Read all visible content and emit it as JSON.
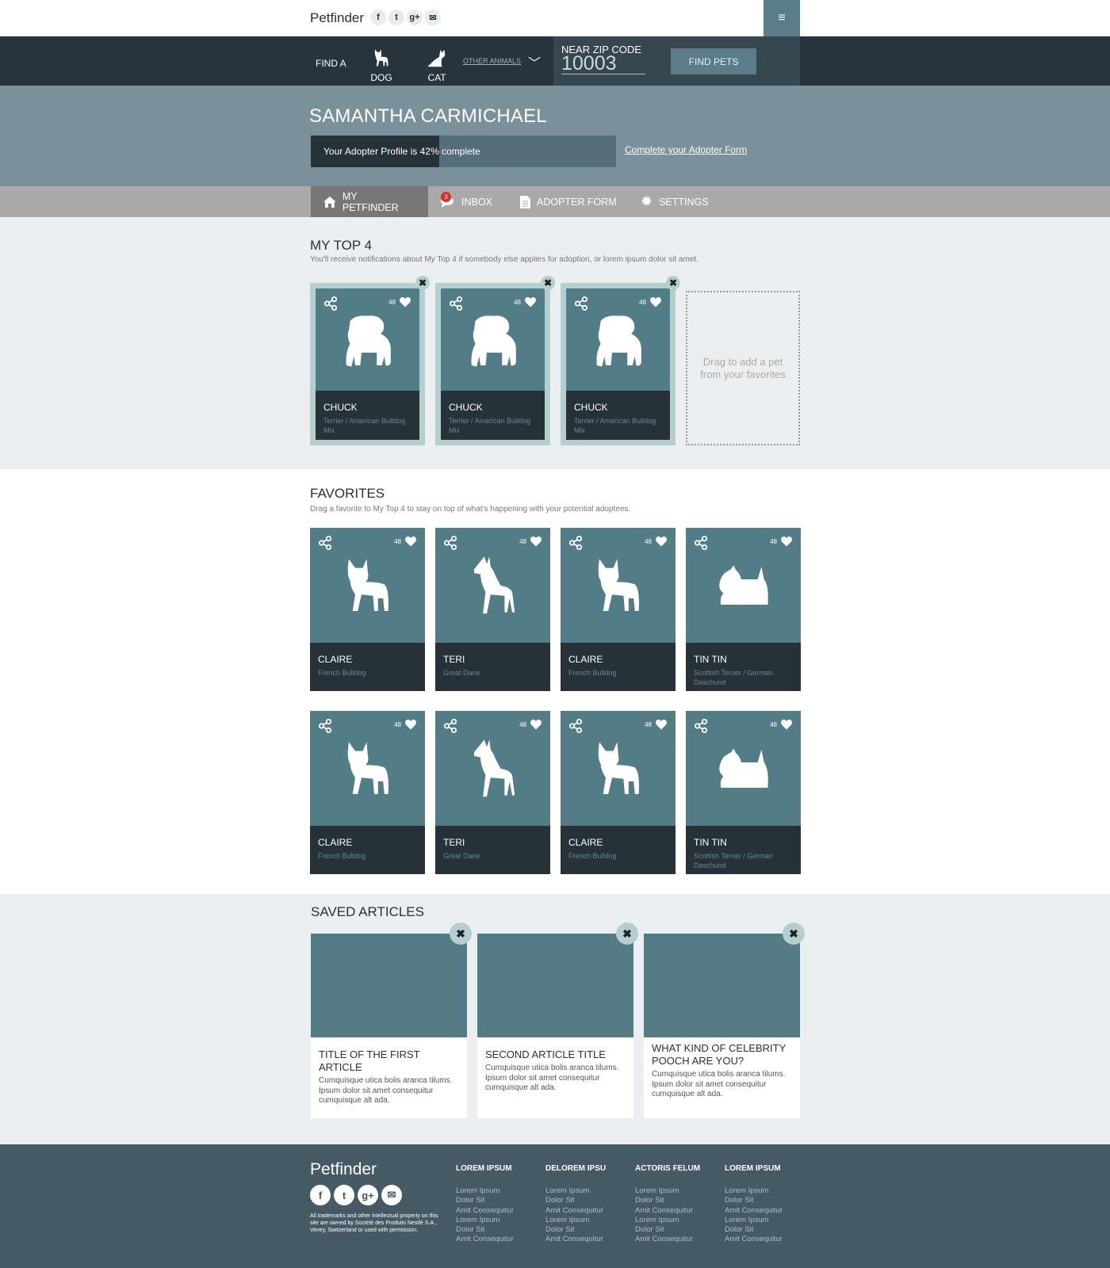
{
  "header": {
    "logo": "Petfinder",
    "social": [
      "f",
      "t",
      "g+",
      "m"
    ],
    "menu_icon": "hamburger-icon"
  },
  "nav": {
    "find_a": "FIND A",
    "dog": "DOG",
    "cat": "CAT",
    "other": "OTHER ANIMALS",
    "zip_label": "NEAR ZIP CODE",
    "zip_value": "10003",
    "find_button": "FIND PETS"
  },
  "profile": {
    "name": "SAMANTHA CARMICHAEL",
    "progress_text": "Your Adopter Profile is 42% complete",
    "progress_percent": 42,
    "complete_link": "Complete your Adopter Form"
  },
  "tabs": [
    {
      "label": "MY PETFINDER",
      "icon": "home-icon"
    },
    {
      "label": "INBOX",
      "icon": "chat-icon",
      "badge": "3"
    },
    {
      "label": "ADOPTER FORM",
      "icon": "document-icon"
    },
    {
      "label": "SETTINGS",
      "icon": "gear-icon"
    }
  ],
  "top4": {
    "title": "MY TOP 4",
    "subtitle": "You'll receive notifications about My Top 4 if somebody else applies for adoption, or lorem ipsum dolor sit amet.",
    "pets": [
      {
        "name": "CHUCK",
        "breed": "Terrier / American Bulldog Mix",
        "likes": "48",
        "kind": "bulldog"
      },
      {
        "name": "CHUCK",
        "breed": "Terrier / American Bulldog Mix",
        "likes": "48",
        "kind": "bulldog"
      },
      {
        "name": "CHUCK",
        "breed": "Terrier / American Bulldog Mix",
        "likes": "48",
        "kind": "bulldog"
      }
    ],
    "drop_text": "Drag to add a pet from your favorites"
  },
  "favorites": {
    "title": "FAVORITES",
    "subtitle": "Drag a favorite to My Top 4 to stay on top of what's happening with your potential adoptees.",
    "pets": [
      {
        "name": "CLAIRE",
        "breed": "French Bulldog",
        "likes": "48",
        "kind": "frenchie"
      },
      {
        "name": "TERI",
        "breed": "Great Dane",
        "likes": "48",
        "kind": "dane"
      },
      {
        "name": "CLAIRE",
        "breed": "French Bulldog",
        "likes": "48",
        "kind": "frenchie"
      },
      {
        "name": "TIN TIN",
        "breed": "Scottish Terrier / German Daschund",
        "likes": "48",
        "kind": "scottie"
      },
      {
        "name": "CLAIRE",
        "breed": "French Bulldog",
        "likes": "48",
        "kind": "frenchie"
      },
      {
        "name": "TERI",
        "breed": "Great Dane",
        "likes": "48",
        "kind": "dane"
      },
      {
        "name": "CLAIRE",
        "breed": "French Bulldog",
        "likes": "48",
        "kind": "frenchie"
      },
      {
        "name": "TIN TIN",
        "breed": "Scottish Terrier / German Daschund",
        "likes": "48",
        "kind": "scottie"
      }
    ]
  },
  "articles": {
    "title": "SAVED ARTICLES",
    "items": [
      {
        "title": "TITLE OF THE FIRST ARTICLE",
        "body": "Cumquisque utica bolis aranca tilums. Ipsum dolor sit amet consequitur cumquisque alt ada."
      },
      {
        "title": "SECOND ARTICLE TITLE",
        "body": "Cumquisque utica bolis aranca tilums. Ipsum dolor sit amet consequitur cumquisque alt ada."
      },
      {
        "title": "WHAT KIND OF CELEBRITY POOCH ARE YOU?",
        "body": "Cumquisque utica bolis aranca tilums. Ipsum dolor sit amet consequitur cumquisque alt ada."
      }
    ]
  },
  "footer": {
    "logo": "Petfinder",
    "legal": "All trademarks and other intellectual property on this site are owned by Société des Produits Nestlé S.A., Vevey, Switzerland or used with permission.",
    "columns": [
      {
        "title": "LOREM IPSUM",
        "links": [
          "Lorem Ipsum",
          "Dolor Sit",
          "Amit Consequitur",
          "Lorem Ipsum",
          "Dolor Sit",
          "Amit Consequitur"
        ]
      },
      {
        "title": "DELOREM IPSU",
        "links": [
          "Lorem Ipsum",
          "Dolor Sit",
          "Amit Consequitur",
          "Lorem Ipsum",
          "Dolor Sit",
          "Amit Consequitur"
        ]
      },
      {
        "title": "ACTORIS FELUM",
        "links": [
          "Lorem Ipsum",
          "Dolor Sit",
          "Amit Consequitur",
          "Lorem Ipsum",
          "Dolor Sit",
          "Amit Consequitur"
        ]
      },
      {
        "title": "LOREM IPSUM",
        "links": [
          "Lorem Ipsum",
          "Dolor Sit",
          "Amit Consequitur",
          "Lorem Ipsum",
          "Dolor Sit",
          "Amit Consequitur"
        ]
      }
    ]
  },
  "colors": {
    "nav": "#27343b",
    "band": "#7a919b",
    "card": "#527c86",
    "card_bottom": "#263238",
    "footer": "#455a64",
    "badge": "#d32f2f"
  }
}
